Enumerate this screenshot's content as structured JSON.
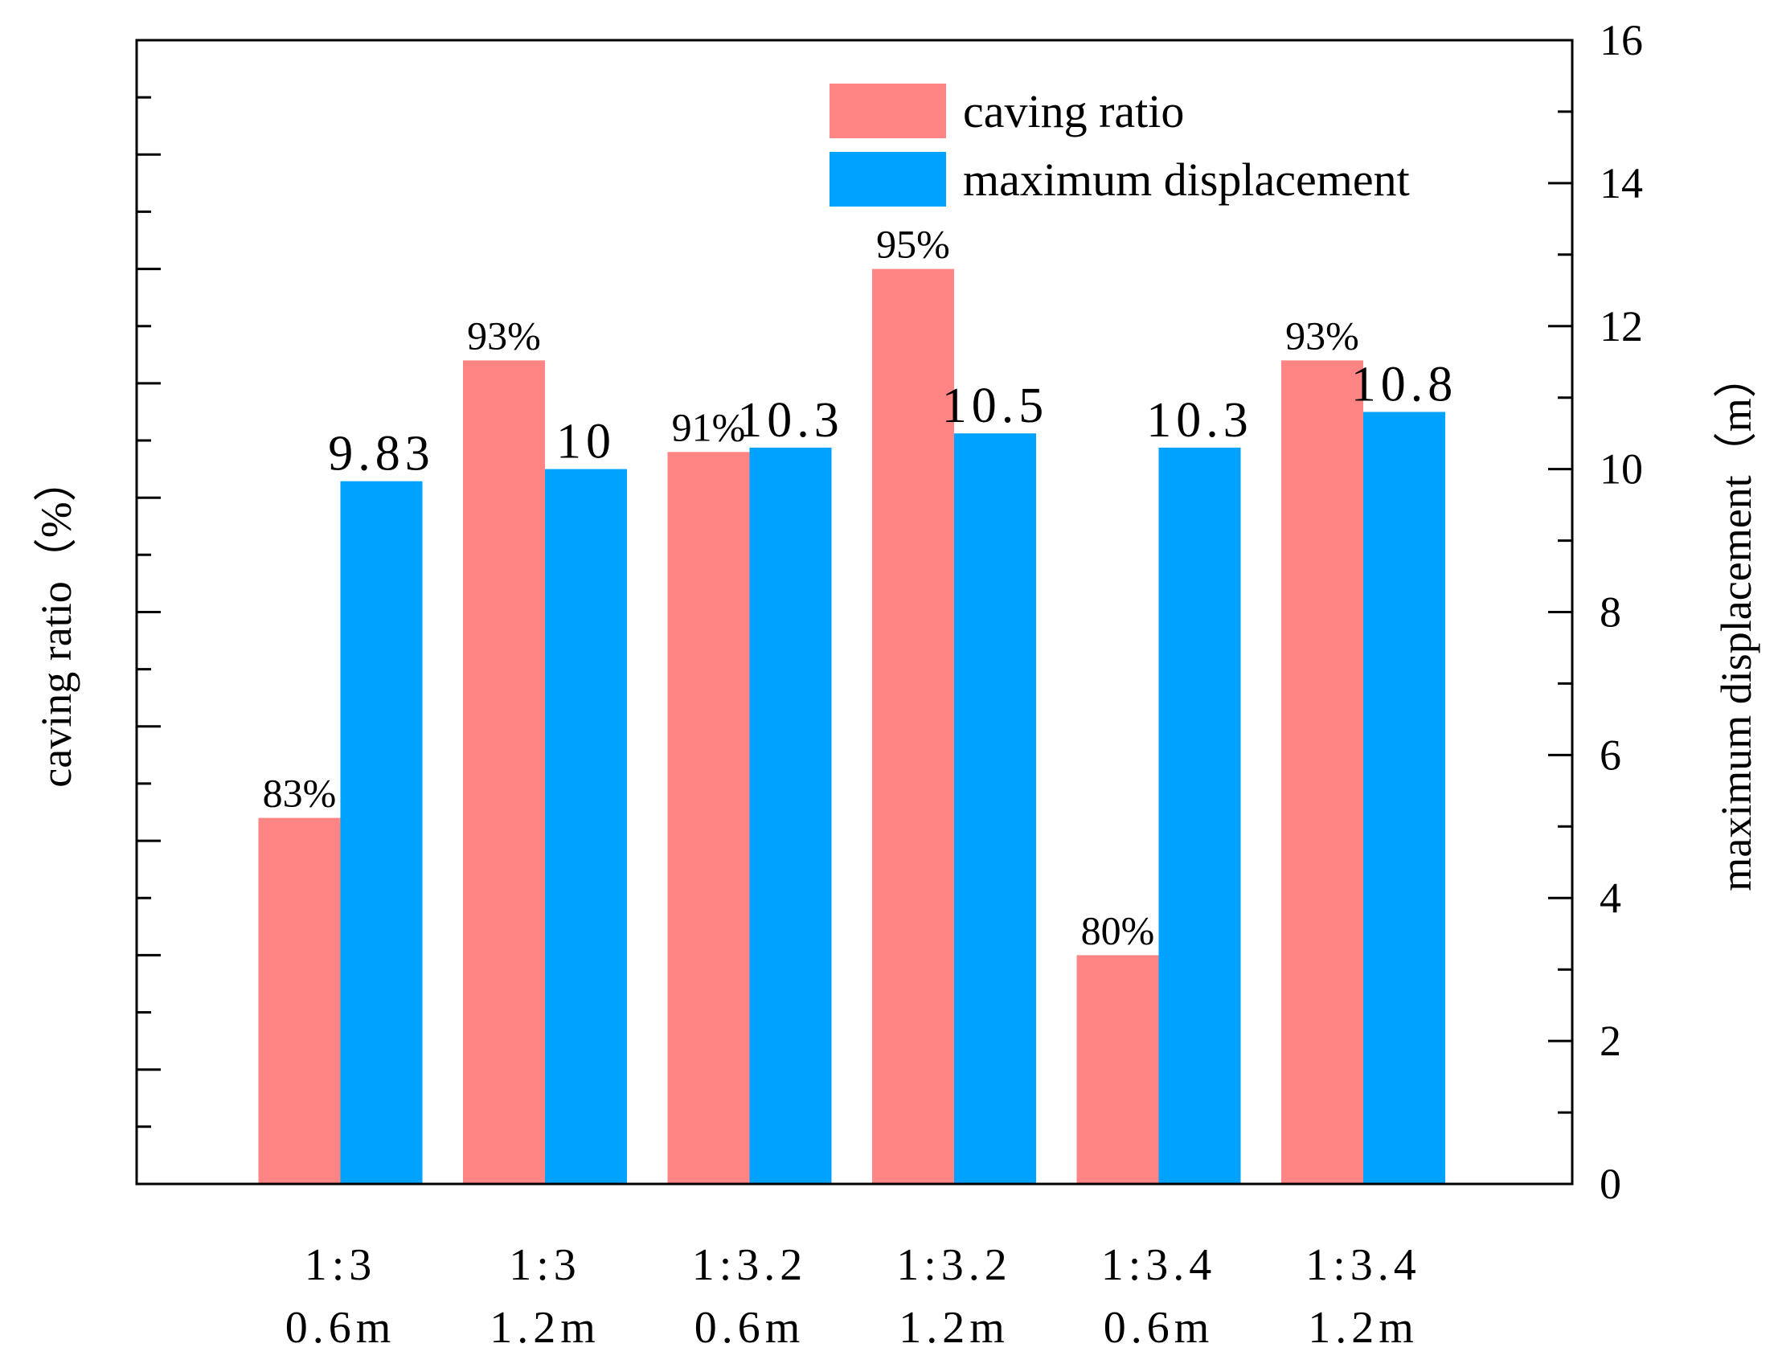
{
  "chart_data": {
    "type": "bar",
    "categories": [
      [
        "1:3",
        "0.6m"
      ],
      [
        "1:3",
        "1.2m"
      ],
      [
        "1:3.2",
        "0.6m"
      ],
      [
        "1:3.2",
        "1.2m"
      ],
      [
        "1:3.4",
        "0.6m"
      ],
      [
        "1:3.4",
        "1.2m"
      ]
    ],
    "series": [
      {
        "name": "caving ratio",
        "axis": "left",
        "color": "#ff8585",
        "values": [
          83,
          93,
          91,
          95,
          80,
          93
        ],
        "labels": [
          "83%",
          "93%",
          "91%",
          "95%",
          "80%",
          "93%"
        ]
      },
      {
        "name": "maximum displacement",
        "axis": "right",
        "color": "#00a2ff",
        "values": [
          9.83,
          10,
          10.3,
          10.5,
          10.3,
          10.8
        ],
        "labels": [
          "9.83",
          "10",
          "10.3",
          "10.5",
          "10.3",
          "10.8"
        ]
      }
    ],
    "ylabel": "caving ratio（%）",
    "y2label": "maximum displacement（m）",
    "ylim": [
      75,
      100
    ],
    "y2lim": [
      0,
      16
    ],
    "y2ticks": [
      "0",
      "2",
      "4",
      "6",
      "8",
      "10",
      "12",
      "14",
      "16"
    ],
    "legend_position": "top-right",
    "grid": false
  }
}
